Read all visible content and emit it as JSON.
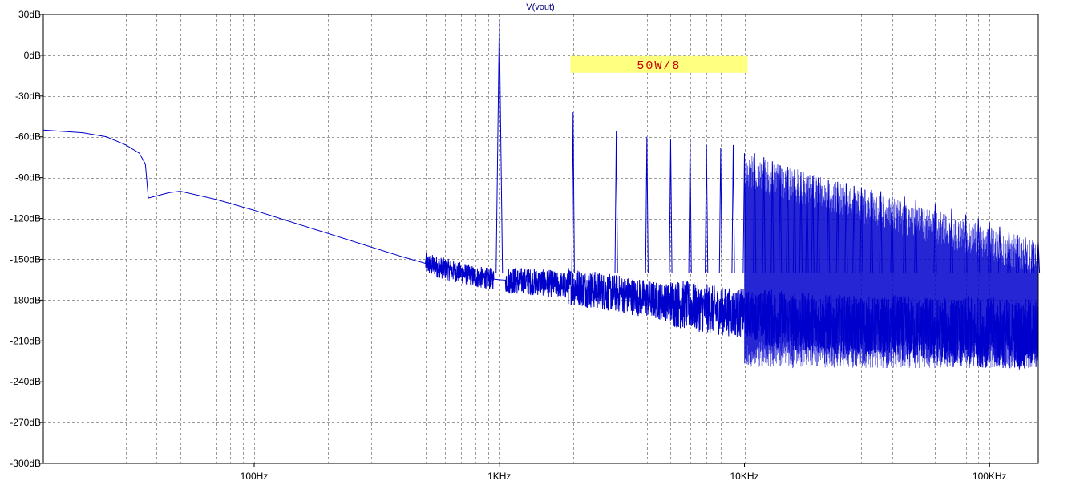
{
  "chart_data": {
    "type": "line",
    "title": "V(vout)",
    "xlabel": "",
    "ylabel": "",
    "x_scale": "log",
    "xlim": [
      13.8,
      158000
    ],
    "ylim": [
      -300,
      30
    ],
    "grid": true,
    "x_major_ticks": [
      {
        "value": 100,
        "label": "100Hz"
      },
      {
        "value": 1000,
        "label": "1KHz"
      },
      {
        "value": 10000,
        "label": "10KHz"
      },
      {
        "value": 100000,
        "label": "100KHz"
      }
    ],
    "y_ticks": [
      {
        "value": 30,
        "label": "30dB"
      },
      {
        "value": 0,
        "label": "0dB"
      },
      {
        "value": -30,
        "label": "-30dB"
      },
      {
        "value": -60,
        "label": "-60dB"
      },
      {
        "value": -90,
        "label": "-90dB"
      },
      {
        "value": -120,
        "label": "-120dB"
      },
      {
        "value": -150,
        "label": "-150dB"
      },
      {
        "value": -180,
        "label": "-180dB"
      },
      {
        "value": -210,
        "label": "-210dB"
      },
      {
        "value": -240,
        "label": "-240dB"
      },
      {
        "value": -270,
        "label": "-270dB"
      },
      {
        "value": -300,
        "label": "-300dB"
      }
    ],
    "annotation": {
      "text": "50W/8",
      "x_from": 1950,
      "x_to": 10300,
      "y": -7
    },
    "series": [
      {
        "name": "",
        "color": "#0000cc",
        "baseline": [
          [
            13.8,
            -55
          ],
          [
            20,
            -57
          ],
          [
            25,
            -60
          ],
          [
            30,
            -66
          ],
          [
            34,
            -72
          ],
          [
            36,
            -80
          ],
          [
            37,
            -105
          ],
          [
            45,
            -101
          ],
          [
            50,
            -100
          ],
          [
            70,
            -106
          ],
          [
            100,
            -114
          ],
          [
            150,
            -124
          ],
          [
            200,
            -131
          ],
          [
            300,
            -141
          ],
          [
            400,
            -148
          ],
          [
            500,
            -153
          ],
          [
            600,
            -157
          ],
          [
            700,
            -160
          ],
          [
            800,
            -163
          ],
          [
            1000,
            -165
          ],
          [
            1500,
            -167
          ],
          [
            2000,
            -170
          ],
          [
            3000,
            -175
          ],
          [
            5000,
            -182
          ],
          [
            8000,
            -188
          ],
          [
            10000,
            -190
          ],
          [
            15000,
            -195
          ],
          [
            20000,
            -197
          ],
          [
            30000,
            -199
          ],
          [
            50000,
            -201
          ],
          [
            80000,
            -203
          ],
          [
            100000,
            -204
          ],
          [
            130000,
            -205
          ],
          [
            158000,
            -205
          ]
        ],
        "noise_segments": [
          {
            "from": 500,
            "to": 950,
            "amplitude": 8
          },
          {
            "from": 1060,
            "to": 1900,
            "amplitude": 10
          },
          {
            "from": 1900,
            "to": 5000,
            "amplitude": 14
          },
          {
            "from": 5000,
            "to": 12000,
            "amplitude": 18
          },
          {
            "from": 12000,
            "to": 40000,
            "amplitude": 22
          },
          {
            "from": 40000,
            "to": 80000,
            "amplitude": 24
          },
          {
            "from": 80000,
            "to": 158000,
            "amplitude": 26
          }
        ],
        "peaks": [
          [
            1000,
            25
          ],
          [
            2000,
            -42
          ],
          [
            3000,
            -56
          ],
          [
            4000,
            -60
          ],
          [
            5000,
            -62
          ],
          [
            6000,
            -61
          ],
          [
            7000,
            -66
          ],
          [
            8000,
            -68
          ],
          [
            9000,
            -66
          ],
          [
            10000,
            -72
          ],
          [
            11000,
            -72
          ],
          [
            12000,
            -75
          ],
          [
            13000,
            -78
          ],
          [
            14000,
            -81
          ],
          [
            15000,
            -82
          ],
          [
            16000,
            -84
          ],
          [
            17000,
            -86
          ],
          [
            18000,
            -88
          ],
          [
            19000,
            -89
          ],
          [
            20000,
            -90
          ],
          [
            22000,
            -92
          ],
          [
            24000,
            -93
          ],
          [
            26000,
            -94
          ],
          [
            28000,
            -96
          ],
          [
            30000,
            -97
          ],
          [
            33000,
            -99
          ],
          [
            36000,
            -100
          ],
          [
            40000,
            -102
          ],
          [
            45000,
            -104
          ],
          [
            50000,
            -106
          ],
          [
            60000,
            -109
          ],
          [
            70000,
            -113
          ],
          [
            80000,
            -117
          ],
          [
            90000,
            -120
          ],
          [
            100000,
            -123
          ],
          [
            110000,
            -126
          ],
          [
            120000,
            -129
          ],
          [
            130000,
            -132
          ],
          [
            140000,
            -134
          ],
          [
            150000,
            -136
          ],
          [
            158000,
            -137
          ]
        ],
        "peak_floor": -160,
        "envelope_region": {
          "from": 10000,
          "to": 158000,
          "top_at_from": -72,
          "top_at_to": -137,
          "bottom": -230
        }
      }
    ]
  }
}
